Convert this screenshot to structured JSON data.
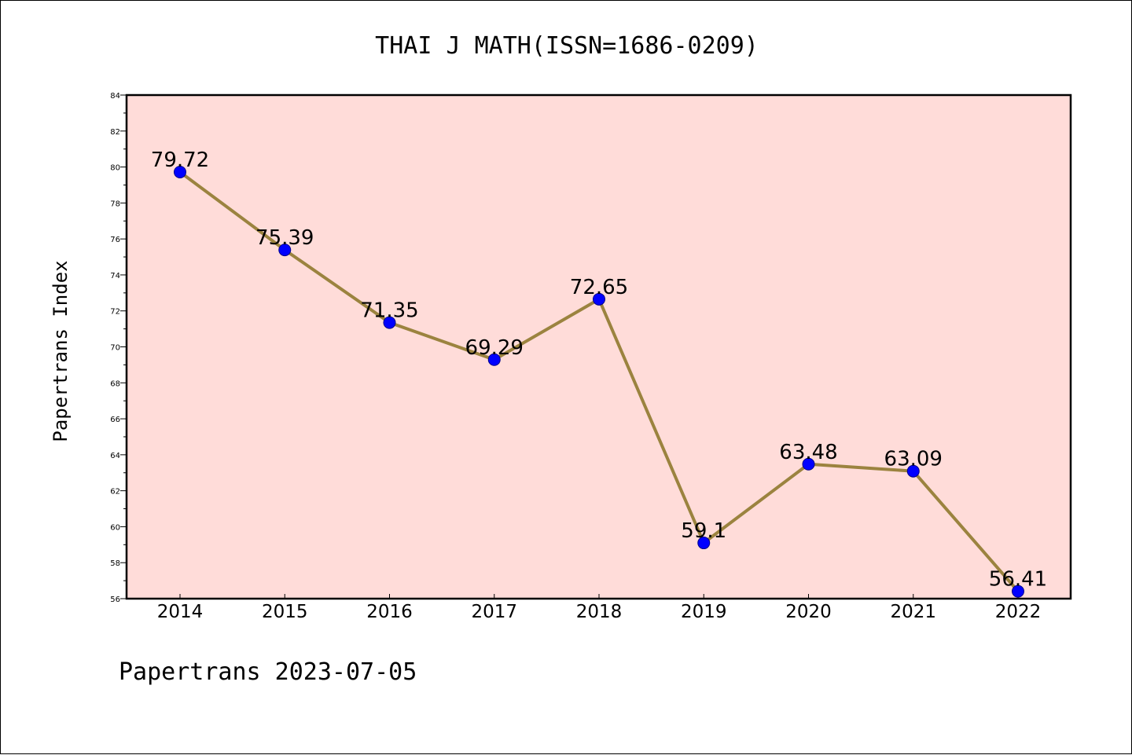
{
  "chart_data": {
    "type": "line",
    "title": "THAI J MATH(ISSN=1686-0209)",
    "xlabel": "",
    "ylabel": "Papertrans Index",
    "x": [
      "2014",
      "2015",
      "2016",
      "2017",
      "2018",
      "2019",
      "2020",
      "2021",
      "2022"
    ],
    "series": [
      {
        "values": [
          79.72,
          75.39,
          71.35,
          69.29,
          72.65,
          59.1,
          63.48,
          63.09,
          56.41
        ],
        "labels": [
          "79.72",
          "75.39",
          "71.35",
          "69.29",
          "72.65",
          "59.1",
          "63.48",
          "63.09",
          "56.41"
        ]
      }
    ],
    "ylim": [
      56,
      84
    ],
    "yticks": [
      "56",
      "58",
      "60",
      "62",
      "64",
      "66",
      "68",
      "70",
      "72",
      "74",
      "76",
      "78",
      "80",
      "82",
      "84"
    ],
    "grid": false,
    "legend": "none",
    "colors": {
      "plot_background": "#ffdcd9",
      "line": "#9b833f",
      "marker": "#0000ff",
      "marker_edge": "#00008b"
    }
  },
  "footer": {
    "text": "Papertrans 2023-07-05"
  }
}
